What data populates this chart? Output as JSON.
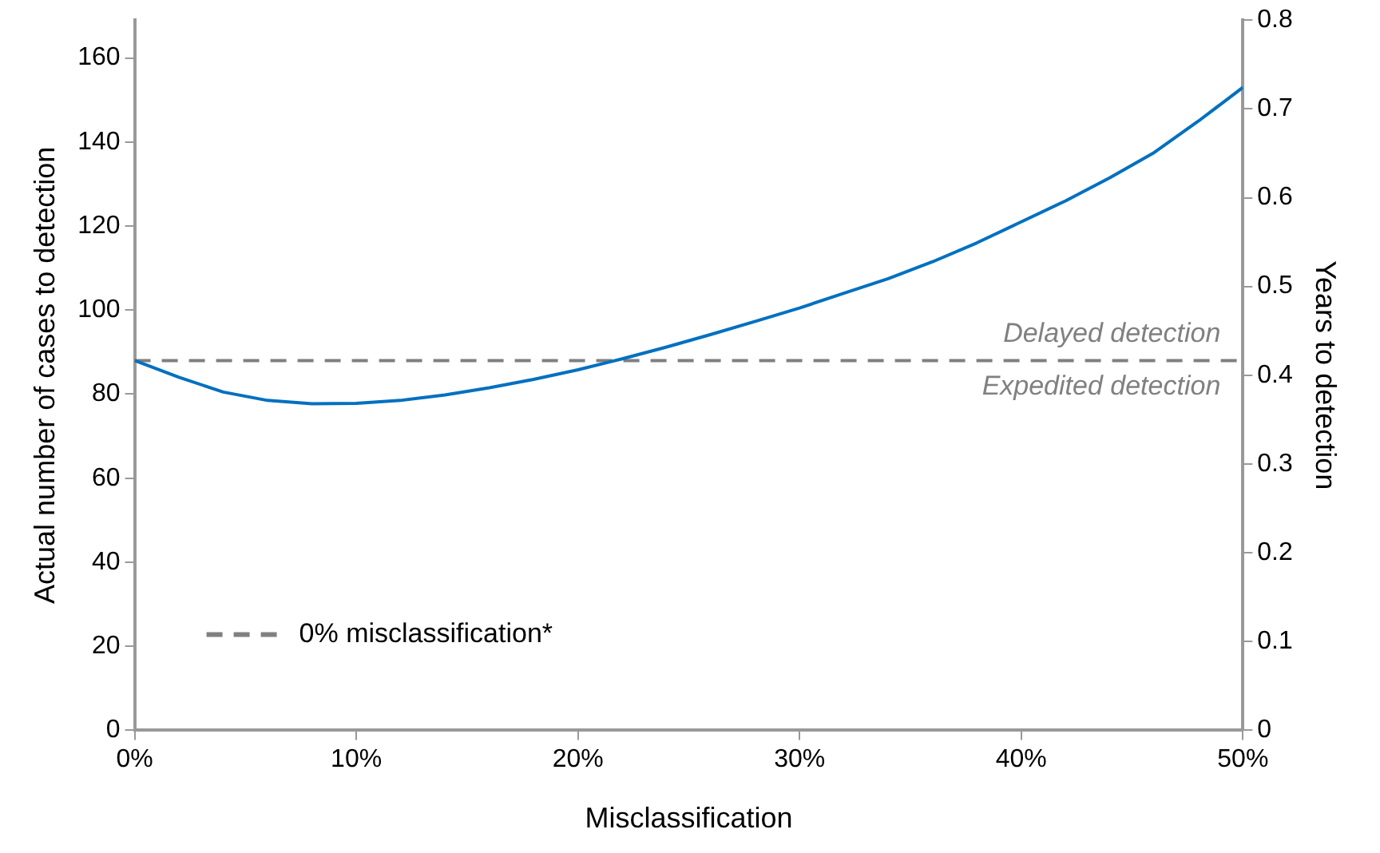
{
  "chart_data": {
    "type": "line",
    "xlabel": "Misclassification",
    "ylabel": "Actual number of cases to detection",
    "y2label": "Years to detection",
    "series": [
      {
        "x": [
          0,
          2,
          4,
          6,
          8,
          10,
          12,
          14,
          16,
          18,
          20,
          22,
          24,
          26,
          28,
          30,
          32,
          34,
          36,
          38,
          40,
          42,
          44,
          46,
          48,
          50
        ],
        "color": "#0070c0",
        "values": [
          88,
          84,
          80.5,
          78.5,
          77.7,
          77.8,
          78.5,
          79.8,
          81.5,
          83.5,
          85.8,
          88.4,
          91.2,
          94.2,
          97.3,
          100.5,
          104,
          107.5,
          111.5,
          116,
          121,
          126,
          131.5,
          137.5,
          145,
          153
        ]
      },
      {
        "name": "0% misclassification*",
        "x": [
          0,
          50
        ],
        "color": "#808080",
        "line_style": "dashed",
        "values": [
          88,
          88
        ]
      }
    ],
    "xlim": [
      0,
      50
    ],
    "xticks": [
      {
        "value": 0,
        "label": "0%"
      },
      {
        "value": 10,
        "label": "10%"
      },
      {
        "value": 20,
        "label": "20%"
      },
      {
        "value": 30,
        "label": "30%"
      },
      {
        "value": 40,
        "label": "40%"
      },
      {
        "value": 50,
        "label": "50%"
      }
    ],
    "ylim": [
      0,
      169
    ],
    "yticks": [
      0,
      20,
      40,
      60,
      80,
      100,
      120,
      140,
      160
    ],
    "y2lim": [
      0,
      0.8
    ],
    "y2ticks": [
      0,
      0.1,
      0.2,
      0.3,
      0.4,
      0.5,
      0.6,
      0.7,
      0.8
    ],
    "annotations": [
      "Delayed detection",
      "Expedited detection"
    ],
    "legend": "bottom left",
    "grid": false,
    "marker": "none"
  }
}
